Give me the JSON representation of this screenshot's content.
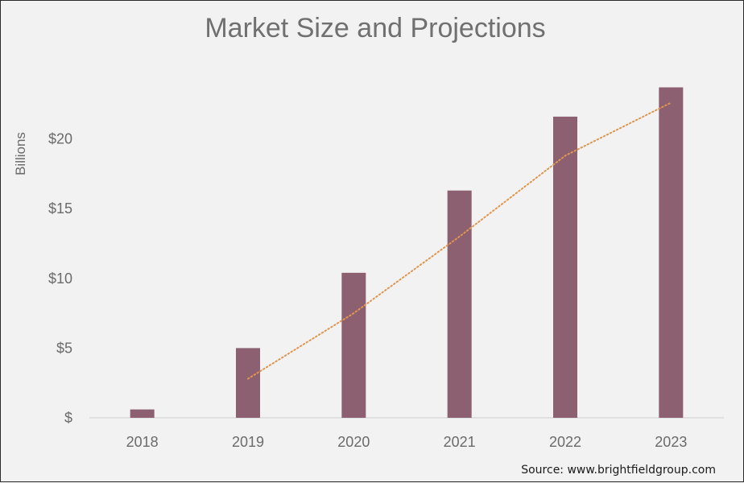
{
  "chart_data": {
    "type": "bar",
    "title": "Market Size and Projections",
    "xlabel": "",
    "ylabel": "Billions",
    "categories": [
      "2018",
      "2019",
      "2020",
      "2021",
      "2022",
      "2023"
    ],
    "values": [
      0.6,
      5.0,
      10.4,
      16.3,
      21.6,
      23.7
    ],
    "ylim": [
      0,
      25
    ],
    "yticks": [
      {
        "value": 0,
        "label": "$"
      },
      {
        "value": 5,
        "label": "$5"
      },
      {
        "value": 10,
        "label": "$10"
      },
      {
        "value": 15,
        "label": "$15"
      },
      {
        "value": 20,
        "label": "$20"
      }
    ],
    "trendline": {
      "style": "dotted",
      "start": {
        "x": "2019",
        "y": 2.8
      },
      "points": [
        {
          "x": "2019",
          "y": 2.8
        },
        {
          "x": "2020",
          "y": 7.5
        },
        {
          "x": "2021",
          "y": 13.0
        },
        {
          "x": "2022",
          "y": 18.8
        },
        {
          "x": "2023",
          "y": 22.6
        }
      ]
    },
    "grid": false,
    "legend": "none",
    "colors": {
      "bar": "#8c6070",
      "trend": "#e0964e",
      "axis": "#cfcfcf",
      "text": "#6b6b6b"
    }
  },
  "source": "Source: www.brightfieldgroup.com"
}
